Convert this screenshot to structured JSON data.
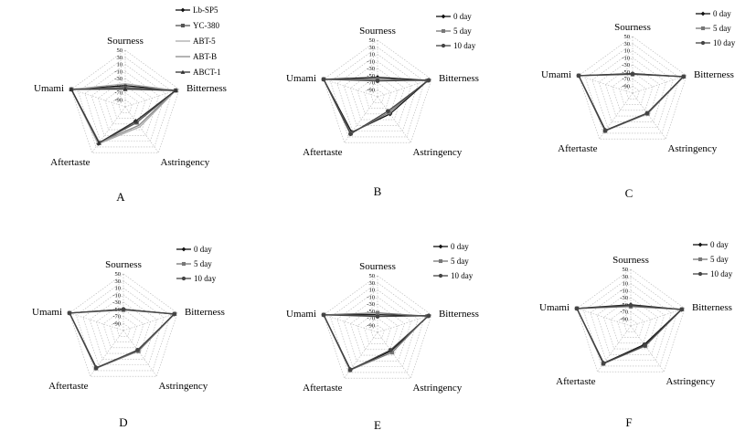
{
  "panels": [
    {
      "letter": "A",
      "axes": [
        "Sourness",
        "Bitterness",
        "Astringency",
        "Aftertaste",
        "Umami"
      ],
      "ticks": [
        "50",
        "30",
        "10",
        "-10",
        "-30",
        "-50",
        "-70",
        "-90"
      ],
      "legend": [
        "Lb-SP5",
        "YC-380",
        "ABT-5",
        "ABT-B",
        "ABCT-1"
      ]
    },
    {
      "letter": "B",
      "axes": [
        "Sourness",
        "Bitterness",
        "Astringency",
        "Aftertaste",
        "Umami"
      ],
      "ticks": [
        "50",
        "30",
        "10",
        "-10",
        "-30",
        "-50",
        "-70",
        "-90"
      ],
      "legend": [
        "0 day",
        "5 day",
        "10 day"
      ]
    },
    {
      "letter": "C",
      "axes": [
        "Sourness",
        "Bitterness",
        "Astringency",
        "Aftertaste",
        "Umami"
      ],
      "ticks": [
        "50",
        "30",
        "10",
        "-10",
        "-30",
        "-50",
        "-70",
        "-90"
      ],
      "legend": [
        "0 day",
        "5 day",
        "10 day"
      ]
    },
    {
      "letter": "D",
      "axes": [
        "Sourness",
        "Bitterness",
        "Astringency",
        "Aftertaste",
        "Umami"
      ],
      "ticks": [
        "50",
        "30",
        "10",
        "-10",
        "-30",
        "-50",
        "-70",
        "-90"
      ],
      "legend": [
        "0 day",
        "5 day",
        "10 day"
      ]
    },
    {
      "letter": "E",
      "axes": [
        "Sourness",
        "Bitterness",
        "Astringency",
        "Aftertaste",
        "Umami"
      ],
      "ticks": [
        "50",
        "30",
        "10",
        "-10",
        "-30",
        "-50",
        "-70",
        "-90"
      ],
      "legend": [
        "0 day",
        "5 day",
        "10 day"
      ]
    },
    {
      "letter": "F",
      "axes": [
        "Sourness",
        "Bitterness",
        "Astringency",
        "Aftertaste",
        "Umami"
      ],
      "ticks": [
        "50",
        "30",
        "10",
        "-10",
        "-30",
        "-50",
        "-70",
        "-90"
      ],
      "legend": [
        "0 day",
        "5 day",
        "10 day"
      ]
    }
  ],
  "chart_data": [
    {
      "type": "radar",
      "panel": "A",
      "rmin": -110,
      "rmax": 50,
      "axes": [
        "Sourness",
        "Bitterness",
        "Astringency",
        "Aftertaste",
        "Umami"
      ],
      "series": [
        {
          "name": "Lb-SP5",
          "marker": "diamond",
          "color": "#111111",
          "values": [
            -50,
            40,
            -60,
            18,
            50
          ]
        },
        {
          "name": "YC-380",
          "marker": "square",
          "color": "#555555",
          "values": [
            -55,
            40,
            -55,
            16,
            50
          ]
        },
        {
          "name": "ABT-5",
          "marker": "none",
          "color": "#aaaaaa",
          "values": [
            -45,
            40,
            -40,
            20,
            50
          ]
        },
        {
          "name": "ABT-B",
          "marker": "none",
          "color": "#8a8a8a",
          "values": [
            -58,
            38,
            -45,
            14,
            50
          ]
        },
        {
          "name": "ABCT-1",
          "marker": "triangle",
          "color": "#333333",
          "values": [
            -60,
            40,
            -60,
            16,
            50
          ]
        }
      ]
    },
    {
      "type": "radar",
      "panel": "B",
      "rmin": -110,
      "rmax": 50,
      "axes": [
        "Sourness",
        "Bitterness",
        "Astringency",
        "Aftertaste",
        "Umami"
      ],
      "series": [
        {
          "name": "0 day",
          "marker": "diamond",
          "color": "#111111",
          "values": [
            -55,
            40,
            -50,
            14,
            50
          ]
        },
        {
          "name": "5 day",
          "marker": "square",
          "color": "#777777",
          "values": [
            -60,
            38,
            -55,
            18,
            50
          ]
        },
        {
          "name": "10 day",
          "marker": "circle",
          "color": "#444444",
          "values": [
            -65,
            42,
            -60,
            20,
            50
          ]
        }
      ]
    },
    {
      "type": "radar",
      "panel": "C",
      "rmin": -110,
      "rmax": 50,
      "axes": [
        "Sourness",
        "Bitterness",
        "Astringency",
        "Aftertaste",
        "Umami"
      ],
      "series": [
        {
          "name": "0 day",
          "marker": "diamond",
          "color": "#111111",
          "values": [
            -55,
            40,
            -40,
            20,
            50
          ]
        },
        {
          "name": "5 day",
          "marker": "square",
          "color": "#777777",
          "values": [
            -57,
            42,
            -38,
            22,
            50
          ]
        },
        {
          "name": "10 day",
          "marker": "circle",
          "color": "#444444",
          "values": [
            -56,
            41,
            -40,
            21,
            50
          ]
        }
      ]
    },
    {
      "type": "radar",
      "panel": "D",
      "rmin": -110,
      "rmax": 50,
      "axes": [
        "Sourness",
        "Bitterness",
        "Astringency",
        "Aftertaste",
        "Umami"
      ],
      "series": [
        {
          "name": "0 day",
          "marker": "diamond",
          "color": "#111111",
          "values": [
            -50,
            40,
            -40,
            20,
            50
          ]
        },
        {
          "name": "5 day",
          "marker": "square",
          "color": "#777777",
          "values": [
            -52,
            42,
            -38,
            22,
            50
          ]
        },
        {
          "name": "10 day",
          "marker": "circle",
          "color": "#444444",
          "values": [
            -50,
            41,
            -42,
            21,
            50
          ]
        }
      ]
    },
    {
      "type": "radar",
      "panel": "E",
      "rmin": -110,
      "rmax": 50,
      "axes": [
        "Sourness",
        "Bitterness",
        "Astringency",
        "Aftertaste",
        "Umami"
      ],
      "series": [
        {
          "name": "0 day",
          "marker": "diamond",
          "color": "#111111",
          "values": [
            -60,
            40,
            -45,
            20,
            50
          ]
        },
        {
          "name": "5 day",
          "marker": "square",
          "color": "#777777",
          "values": [
            -55,
            38,
            -40,
            22,
            50
          ]
        },
        {
          "name": "10 day",
          "marker": "circle",
          "color": "#444444",
          "values": [
            -65,
            42,
            -48,
            21,
            50
          ]
        }
      ]
    },
    {
      "type": "radar",
      "panel": "F",
      "rmin": -110,
      "rmax": 50,
      "axes": [
        "Sourness",
        "Bitterness",
        "Astringency",
        "Aftertaste",
        "Umami"
      ],
      "series": [
        {
          "name": "0 day",
          "marker": "diamond",
          "color": "#111111",
          "values": [
            -50,
            40,
            -45,
            20,
            50
          ]
        },
        {
          "name": "5 day",
          "marker": "square",
          "color": "#777777",
          "values": [
            -55,
            42,
            -40,
            22,
            50
          ]
        },
        {
          "name": "10 day",
          "marker": "circle",
          "color": "#444444",
          "values": [
            -52,
            41,
            -42,
            21,
            50
          ]
        }
      ]
    }
  ]
}
